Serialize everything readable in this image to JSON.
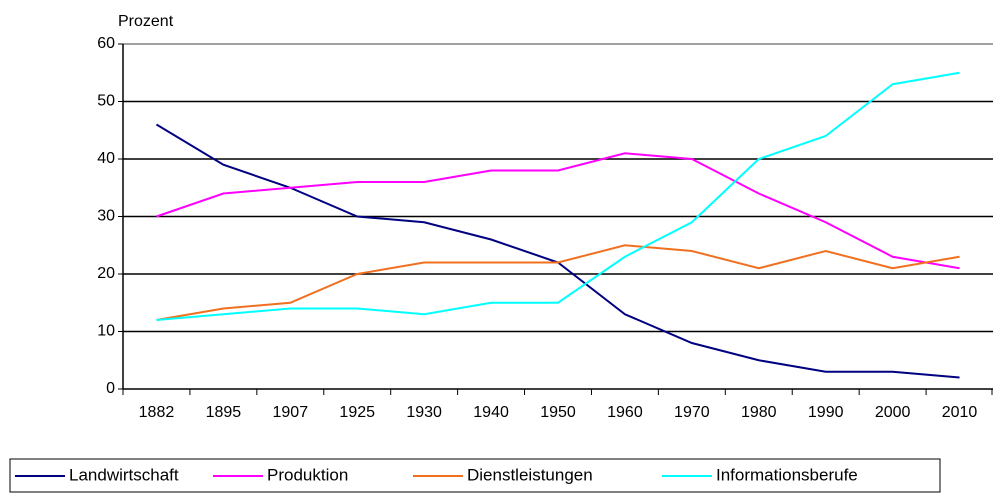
{
  "chart_data": {
    "type": "line",
    "y_label": "Prozent",
    "categories": [
      "1882",
      "1895",
      "1907",
      "1925",
      "1930",
      "1940",
      "1950",
      "1960",
      "1970",
      "1980",
      "1990",
      "2000",
      "2010"
    ],
    "series": [
      {
        "name": "Landwirtschaft",
        "color": "#000080",
        "values": [
          46,
          39,
          35,
          30,
          29,
          26,
          22,
          13,
          8,
          5,
          3,
          3,
          2
        ]
      },
      {
        "name": "Produktion",
        "color": "#ff00ff",
        "values": [
          30,
          34,
          35,
          36,
          36,
          38,
          38,
          41,
          40,
          34,
          29,
          23,
          21
        ]
      },
      {
        "name": "Dienstleistungen",
        "color": "#f07020",
        "values": [
          12,
          14,
          15,
          20,
          22,
          22,
          22,
          25,
          24,
          21,
          24,
          21,
          23
        ]
      },
      {
        "name": "Informationsberufe",
        "color": "#00ffff",
        "values": [
          12,
          13,
          14,
          14,
          13,
          15,
          15,
          23,
          29,
          40,
          44,
          53,
          55
        ]
      }
    ],
    "ylim": [
      0,
      60
    ],
    "yticks": [
      0,
      10,
      20,
      30,
      40,
      50,
      60
    ],
    "grid": true,
    "legend": "bottom"
  }
}
